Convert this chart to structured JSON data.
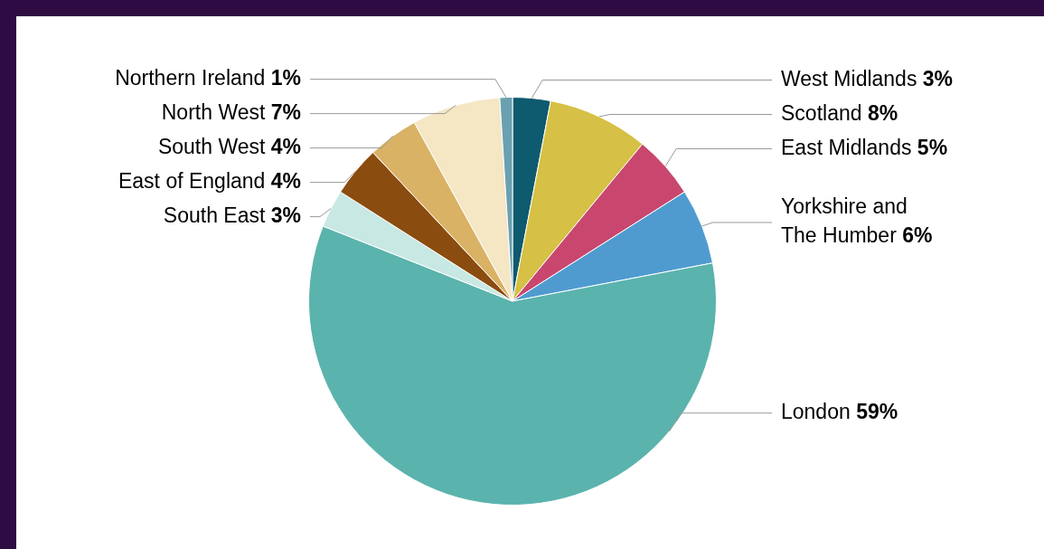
{
  "chart_data": {
    "type": "pie",
    "categories": [
      "West Midlands",
      "Scotland",
      "East Midlands",
      "Yorkshire and The Humber",
      "London",
      "South East",
      "East of England",
      "South West",
      "North West",
      "Northern Ireland"
    ],
    "values": [
      3,
      8,
      5,
      6,
      59,
      3,
      4,
      4,
      7,
      1
    ],
    "colors": [
      "#0e5a6e",
      "#d6c045",
      "#c9476e",
      "#4f9bd0",
      "#5bb3ad",
      "#c8e8e3",
      "#8b4c10",
      "#d9b265",
      "#f5e6c4",
      "#6aa0b0"
    ],
    "value_labels": [
      "3%",
      "8%",
      "5%",
      "6%",
      "59%",
      "3%",
      "4%",
      "4%",
      "7%",
      "1%"
    ],
    "legend": false
  }
}
